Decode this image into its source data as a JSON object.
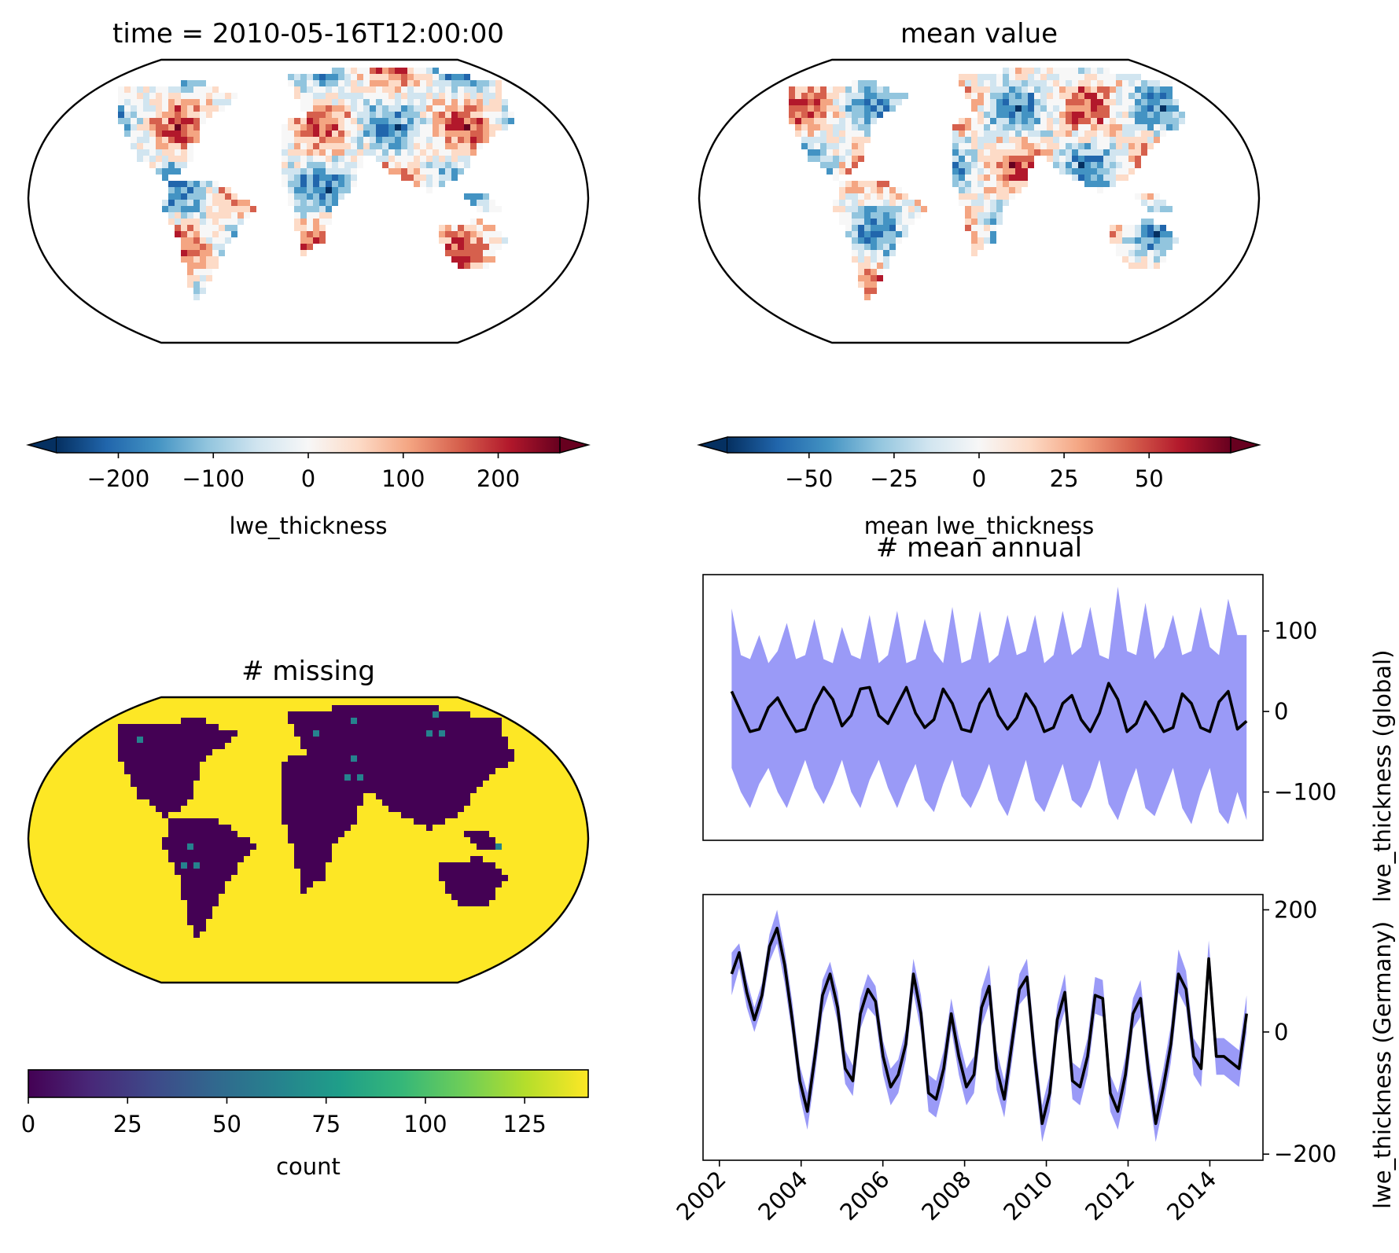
{
  "colors": {
    "rdbu": [
      "#67001f",
      "#b2182b",
      "#d6604d",
      "#f4a582",
      "#fddbc7",
      "#f7f7f7",
      "#d1e5f0",
      "#92c5de",
      "#4393c3",
      "#2166ac",
      "#053061"
    ],
    "viridis": [
      "#440154",
      "#482878",
      "#3e4989",
      "#31688e",
      "#26828e",
      "#1f9e89",
      "#35b779",
      "#6ece58",
      "#b5de2b",
      "#fde725"
    ],
    "land_missing": "#440154",
    "ocean_missing": "#fde725",
    "spread_fill": "#9a9af7",
    "line": "#000000"
  },
  "chart_data": [
    {
      "type": "map",
      "title": "time = 2010-05-16T12:00:00",
      "colorbar": {
        "label": "lwe_thickness",
        "ticks": [
          "−200",
          "−100",
          "0",
          "100",
          "200"
        ],
        "tick_values": [
          -200,
          -100,
          0,
          100,
          200
        ],
        "range": [
          -265,
          265
        ],
        "extend": "both",
        "cmap": "RdBu_r"
      }
    },
    {
      "type": "map",
      "title": "mean value",
      "colorbar": {
        "label": "mean lwe_thickness",
        "ticks": [
          "−50",
          "−25",
          "0",
          "25",
          "50"
        ],
        "tick_values": [
          -50,
          -25,
          0,
          25,
          50
        ],
        "range": [
          -74,
          74
        ],
        "extend": "both",
        "cmap": "RdBu_r"
      }
    },
    {
      "type": "map",
      "title": "# missing",
      "colorbar": {
        "label": "count",
        "ticks": [
          "0",
          "25",
          "50",
          "75",
          "100",
          "125"
        ],
        "tick_values": [
          0,
          25,
          50,
          75,
          100,
          125
        ],
        "range": [
          0,
          141
        ],
        "extend": "neither",
        "cmap": "viridis"
      }
    },
    {
      "type": "area",
      "title": "# mean annual",
      "ylabel": "lwe_thickness (global)",
      "yticks": [
        "100",
        "0",
        "−100"
      ],
      "ytick_values": [
        100,
        0,
        -100
      ],
      "xlim": [
        2001.6,
        2015.3
      ],
      "ylim": [
        -160,
        170
      ],
      "x_start": 2002.3,
      "x_end": 2014.9,
      "series": [
        {
          "values": [
            25,
            0,
            -25,
            -22,
            5,
            17,
            -5,
            -25,
            -22,
            8,
            30,
            15,
            -18,
            -5,
            28,
            30,
            -5,
            -15,
            8,
            30,
            -2,
            -20,
            -10,
            28,
            10,
            -22,
            -25,
            10,
            28,
            -5,
            -22,
            -8,
            22,
            5,
            -25,
            -20,
            10,
            20,
            -10,
            -25,
            -2,
            35,
            15,
            -25,
            -15,
            12,
            -5,
            -25,
            -20,
            22,
            10,
            -20,
            -25,
            12,
            25,
            -22,
            -12
          ]
        },
        {
          "values": [
            128,
            70,
            65,
            95,
            60,
            75,
            110,
            65,
            70,
            115,
            65,
            60,
            105,
            70,
            65,
            120,
            60,
            70,
            125,
            60,
            65,
            115,
            75,
            60,
            130,
            60,
            65,
            125,
            60,
            70,
            120,
            70,
            75,
            120,
            60,
            70,
            125,
            70,
            80,
            130,
            70,
            65,
            155,
            75,
            70,
            135,
            65,
            80,
            120,
            70,
            75,
            130,
            80,
            70,
            140,
            95,
            95
          ]
        },
        {
          "values": [
            -70,
            -100,
            -120,
            -90,
            -70,
            -100,
            -120,
            -90,
            -60,
            -95,
            -115,
            -90,
            -60,
            -100,
            -120,
            -85,
            -60,
            -95,
            -120,
            -90,
            -65,
            -110,
            -125,
            -90,
            -60,
            -105,
            -120,
            -95,
            -65,
            -110,
            -130,
            -95,
            -60,
            -110,
            -125,
            -95,
            -65,
            -110,
            -120,
            -95,
            -60,
            -115,
            -135,
            -100,
            -70,
            -120,
            -130,
            -100,
            -70,
            -120,
            -140,
            -100,
            -70,
            -125,
            -140,
            -100,
            -135
          ]
        }
      ]
    },
    {
      "type": "area",
      "ylabel": "lwe_thickness (Germany)",
      "yticks": [
        "200",
        "0",
        "−200"
      ],
      "ytick_values": [
        200,
        0,
        -200
      ],
      "xticks": [
        "2002",
        "2004",
        "2006",
        "2008",
        "2010",
        "2012",
        "2014"
      ],
      "xtick_values": [
        2002,
        2004,
        2006,
        2008,
        2010,
        2012,
        2014
      ],
      "xlim": [
        2001.6,
        2015.3
      ],
      "ylim": [
        -210,
        225
      ],
      "x_start": 2002.3,
      "x_end": 2014.9,
      "series": [
        {
          "values": [
            95,
            130,
            65,
            20,
            60,
            140,
            170,
            110,
            20,
            -80,
            -130,
            -40,
            60,
            95,
            40,
            -60,
            -80,
            30,
            70,
            50,
            -40,
            -90,
            -70,
            -20,
            95,
            30,
            -100,
            -110,
            -60,
            30,
            -40,
            -90,
            -70,
            40,
            75,
            -60,
            -110,
            -20,
            70,
            90,
            -40,
            -150,
            -100,
            20,
            65,
            -80,
            -90,
            -40,
            60,
            55,
            -100,
            -130,
            -70,
            30,
            55,
            -60,
            -150,
            -90,
            -20,
            95,
            70,
            -40,
            -60,
            120,
            -40,
            -40,
            -50,
            -60,
            30
          ]
        },
        {
          "values": [
            130,
            145,
            85,
            40,
            80,
            160,
            200,
            135,
            50,
            -55,
            -100,
            -15,
            85,
            115,
            65,
            -30,
            -55,
            55,
            95,
            75,
            -15,
            -60,
            -45,
            5,
            120,
            60,
            -70,
            -80,
            -30,
            55,
            -10,
            -60,
            -40,
            70,
            110,
            -30,
            -80,
            10,
            95,
            120,
            -10,
            -120,
            -70,
            45,
            95,
            -50,
            -60,
            -10,
            90,
            85,
            -70,
            -100,
            -40,
            55,
            85,
            -30,
            -120,
            -60,
            10,
            135,
            100,
            -10,
            -30,
            150,
            -10,
            -10,
            -20,
            -30,
            60
          ]
        },
        {
          "values": [
            60,
            105,
            40,
            0,
            40,
            115,
            145,
            80,
            -5,
            -105,
            -160,
            -70,
            30,
            70,
            15,
            -85,
            -105,
            5,
            40,
            25,
            -70,
            -120,
            -100,
            -45,
            65,
            0,
            -130,
            -140,
            -90,
            5,
            -70,
            -120,
            -100,
            10,
            45,
            -95,
            -140,
            -50,
            45,
            60,
            -70,
            -180,
            -130,
            -5,
            35,
            -110,
            -120,
            -70,
            30,
            25,
            -130,
            -160,
            -100,
            5,
            25,
            -90,
            -180,
            -120,
            -50,
            65,
            40,
            -70,
            -90,
            90,
            -70,
            -70,
            -80,
            -90,
            0
          ]
        }
      ]
    }
  ]
}
